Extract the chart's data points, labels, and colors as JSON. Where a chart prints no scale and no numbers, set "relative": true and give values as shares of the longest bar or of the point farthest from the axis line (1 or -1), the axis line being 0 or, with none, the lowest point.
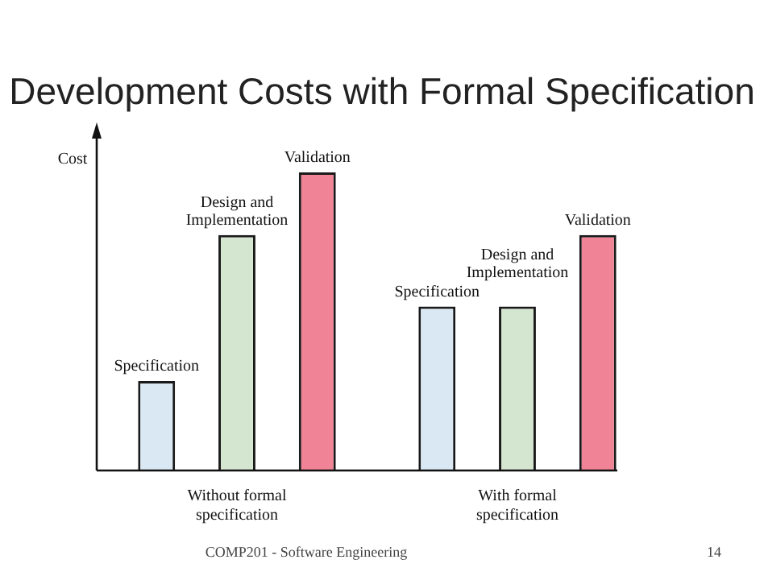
{
  "chart_data": {
    "type": "bar",
    "title": "Development Costs with Formal Specification",
    "ylabel": "Cost",
    "relative": true,
    "categories": [
      "Without formal specification",
      "With formal specification"
    ],
    "series": [
      {
        "name": "Specification",
        "color": "#dae8f4",
        "values": [
          0.3,
          0.55
        ]
      },
      {
        "name": "Design and Implementation",
        "color": "#d5e6d0",
        "values": [
          0.79,
          0.55
        ]
      },
      {
        "name": "Validation",
        "color": "#f08496",
        "values": [
          1,
          0.79
        ]
      }
    ],
    "legend": false,
    "annotations": [
      "COMP201 - Software Engineering",
      "14"
    ]
  }
}
